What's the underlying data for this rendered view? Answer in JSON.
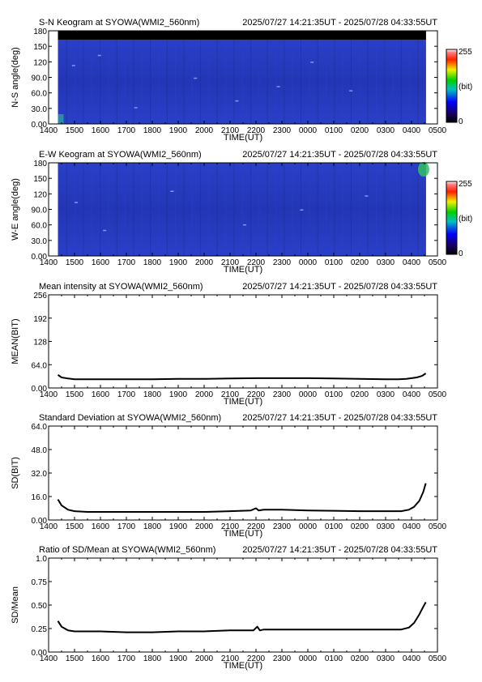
{
  "x_ticks": [
    "1400",
    "1500",
    "1600",
    "1700",
    "1800",
    "1900",
    "2000",
    "2100",
    "2200",
    "2300",
    "0000",
    "0100",
    "0200",
    "0300",
    "0400",
    "0500"
  ],
  "chart_data": [
    {
      "type": "heatmap",
      "title": "S-N Keogram at SYOWA(WMI2_560nm)",
      "time_range": "2025/07/27 14:21:35UT - 2025/07/28 04:33:55UT",
      "xlabel": "TIME(UT)",
      "ylabel": "N-S angle(deg)",
      "xlim": [
        "1400",
        "0500"
      ],
      "ylim": [
        0,
        180
      ],
      "y_ticks": [
        "0.00",
        "30.0",
        "60.0",
        "90.0",
        "120",
        "150",
        "180"
      ],
      "colorbar": {
        "min": "0",
        "max": "255",
        "label": "(bit)"
      },
      "colors": {
        "background_low": "#1d2f9a",
        "background_high": "#2a3fc8",
        "no_data": "#000000"
      }
    },
    {
      "type": "heatmap",
      "title": "E-W Keogram at SYOWA(WMI2_560nm)",
      "time_range": "2025/07/27 14:21:35UT - 2025/07/28 04:33:55UT",
      "xlabel": "TIME(UT)",
      "ylabel": "W-E angle(deg)",
      "xlim": [
        "1400",
        "0500"
      ],
      "ylim": [
        0,
        180
      ],
      "y_ticks": [
        "0.00",
        "30.0",
        "60.0",
        "90.0",
        "120",
        "150",
        "180"
      ],
      "colorbar": {
        "min": "0",
        "max": "255",
        "label": "(bit)"
      },
      "colors": {
        "background_low": "#1d2f9a",
        "background_high": "#2a3fc8",
        "hotspot": "#30c060"
      }
    },
    {
      "type": "line",
      "title": "Mean intensity at SYOWA(WMI2_560nm)",
      "time_range": "2025/07/27 14:21:35UT - 2025/07/28 04:33:55UT",
      "xlabel": "TIME(UT)",
      "ylabel": "MEAN(BIT)",
      "ylim": [
        0,
        256
      ],
      "yticks": [
        0,
        64,
        128,
        192,
        256
      ],
      "y_ticks": [
        "0.00",
        "64.0",
        "128",
        "192",
        "256"
      ],
      "x": [
        14.36,
        14.5,
        14.75,
        15,
        15.5,
        16,
        17,
        18,
        19,
        20,
        21,
        22,
        22.5,
        23,
        24,
        25,
        26,
        27,
        27.5,
        27.8,
        28,
        28.2,
        28.4,
        28.55
      ],
      "values": [
        36,
        29,
        26,
        24,
        24,
        24,
        24,
        24,
        25,
        25,
        26,
        27,
        27,
        27,
        27,
        26,
        25,
        24,
        24,
        25,
        27,
        29,
        33,
        40
      ]
    },
    {
      "type": "line",
      "title": "Standard Deviation at SYOWA(WMI2_560nm)",
      "time_range": "2025/07/27 14:21:35UT - 2025/07/28 04:33:55UT",
      "xlabel": "TIME(UT)",
      "ylabel": "SD(BIT)",
      "ylim": [
        0,
        64
      ],
      "yticks": [
        0,
        16,
        32,
        48,
        64
      ],
      "y_ticks": [
        "0.00",
        "16.0",
        "32.0",
        "48.0",
        "64.0"
      ],
      "x": [
        14.36,
        14.5,
        14.75,
        15,
        15.5,
        16,
        17,
        18,
        19,
        20,
        21,
        21.8,
        22,
        22.1,
        22.3,
        23,
        24,
        25,
        26,
        27,
        27.6,
        27.9,
        28.1,
        28.3,
        28.45,
        28.55
      ],
      "values": [
        14,
        10,
        7,
        6,
        5.5,
        5.5,
        5.5,
        5.5,
        5.5,
        5.5,
        6,
        6.5,
        8,
        6.5,
        7,
        7,
        6.5,
        6.3,
        6,
        6,
        6,
        7,
        9,
        13,
        19,
        25
      ]
    },
    {
      "type": "line",
      "title": "Ratio of SD/Mean at SYOWA(WMI2_560nm)",
      "time_range": "2025/07/27 14:21:35UT - 2025/07/28 04:33:55UT",
      "xlabel": "TIME(UT)",
      "ylabel": "SD/Mean",
      "ylim": [
        0,
        1
      ],
      "yticks": [
        0,
        0.25,
        0.5,
        0.75,
        1
      ],
      "y_ticks": [
        "0.00",
        "0.25",
        "0.50",
        "0.75",
        "1.0"
      ],
      "x": [
        14.36,
        14.5,
        14.75,
        15,
        15.5,
        16,
        17,
        18,
        19,
        20,
        21,
        21.9,
        22.05,
        22.15,
        22.3,
        23,
        24,
        25,
        26,
        27,
        27.6,
        27.9,
        28.1,
        28.3,
        28.45,
        28.55
      ],
      "values": [
        0.33,
        0.27,
        0.23,
        0.22,
        0.22,
        0.22,
        0.21,
        0.21,
        0.22,
        0.22,
        0.23,
        0.23,
        0.27,
        0.23,
        0.24,
        0.24,
        0.24,
        0.24,
        0.24,
        0.24,
        0.24,
        0.26,
        0.31,
        0.4,
        0.48,
        0.53
      ]
    }
  ]
}
